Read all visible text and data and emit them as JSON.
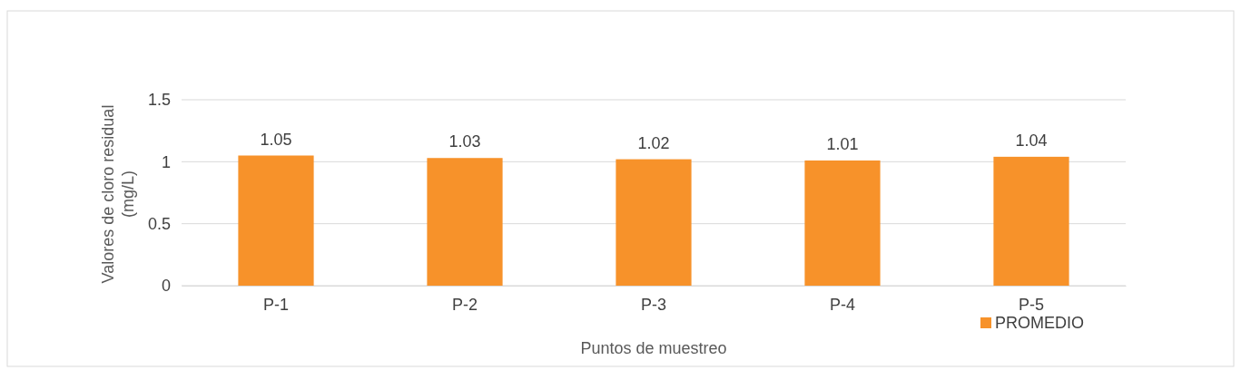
{
  "chart_data": {
    "type": "bar",
    "xlabel": "Puntos de muestreo",
    "ylabel": "Valores de cloro residual (mg/L)",
    "categories": [
      "P-1",
      "P-2",
      "P-3",
      "P-4",
      "P-5"
    ],
    "series": [
      {
        "name": "PROMEDIO",
        "color": "#f7922a",
        "values": [
          1.05,
          1.03,
          1.02,
          1.01,
          1.04
        ]
      }
    ],
    "ylim": [
      0,
      1.5
    ],
    "yticks": [
      0,
      0.5,
      1,
      1.5
    ],
    "grid": "y",
    "data_labels": true,
    "legend": "bottom right"
  }
}
